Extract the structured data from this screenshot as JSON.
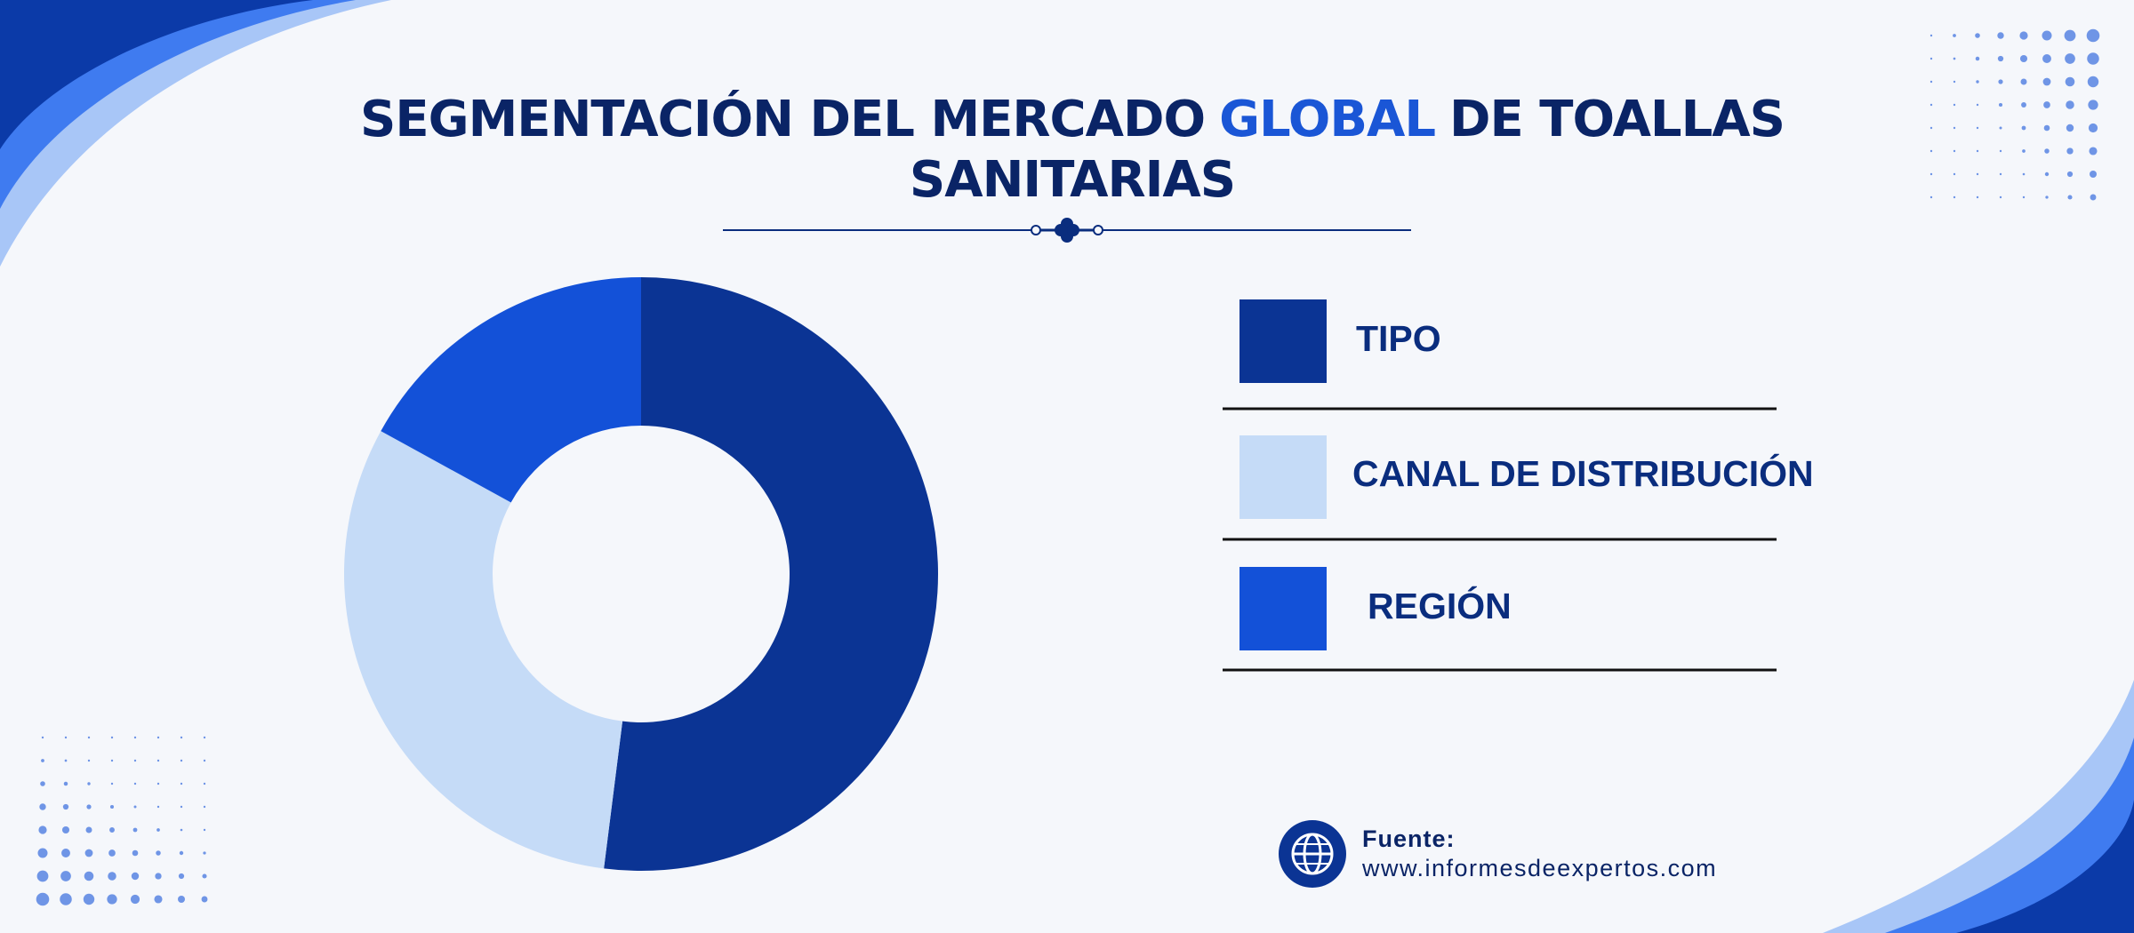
{
  "chart_data": {
    "type": "donut",
    "title": {
      "line1_start": "SEGMENTACIÓN DEL MERCADO",
      "highlight": "GLOBAL",
      "line1_end": "DE TOALLAS",
      "line2": "SANITARIAS"
    },
    "categories": [
      "TIPO",
      "CANAL DE DISTRIBUCIÓN",
      "REGIÓN"
    ],
    "values": [
      52,
      31,
      17
    ],
    "colors": [
      "#0b3494",
      "#c5dbf7",
      "#1351d8"
    ],
    "source_label": "Fuente:",
    "source_url": "www.informesdeexpertos.com"
  }
}
